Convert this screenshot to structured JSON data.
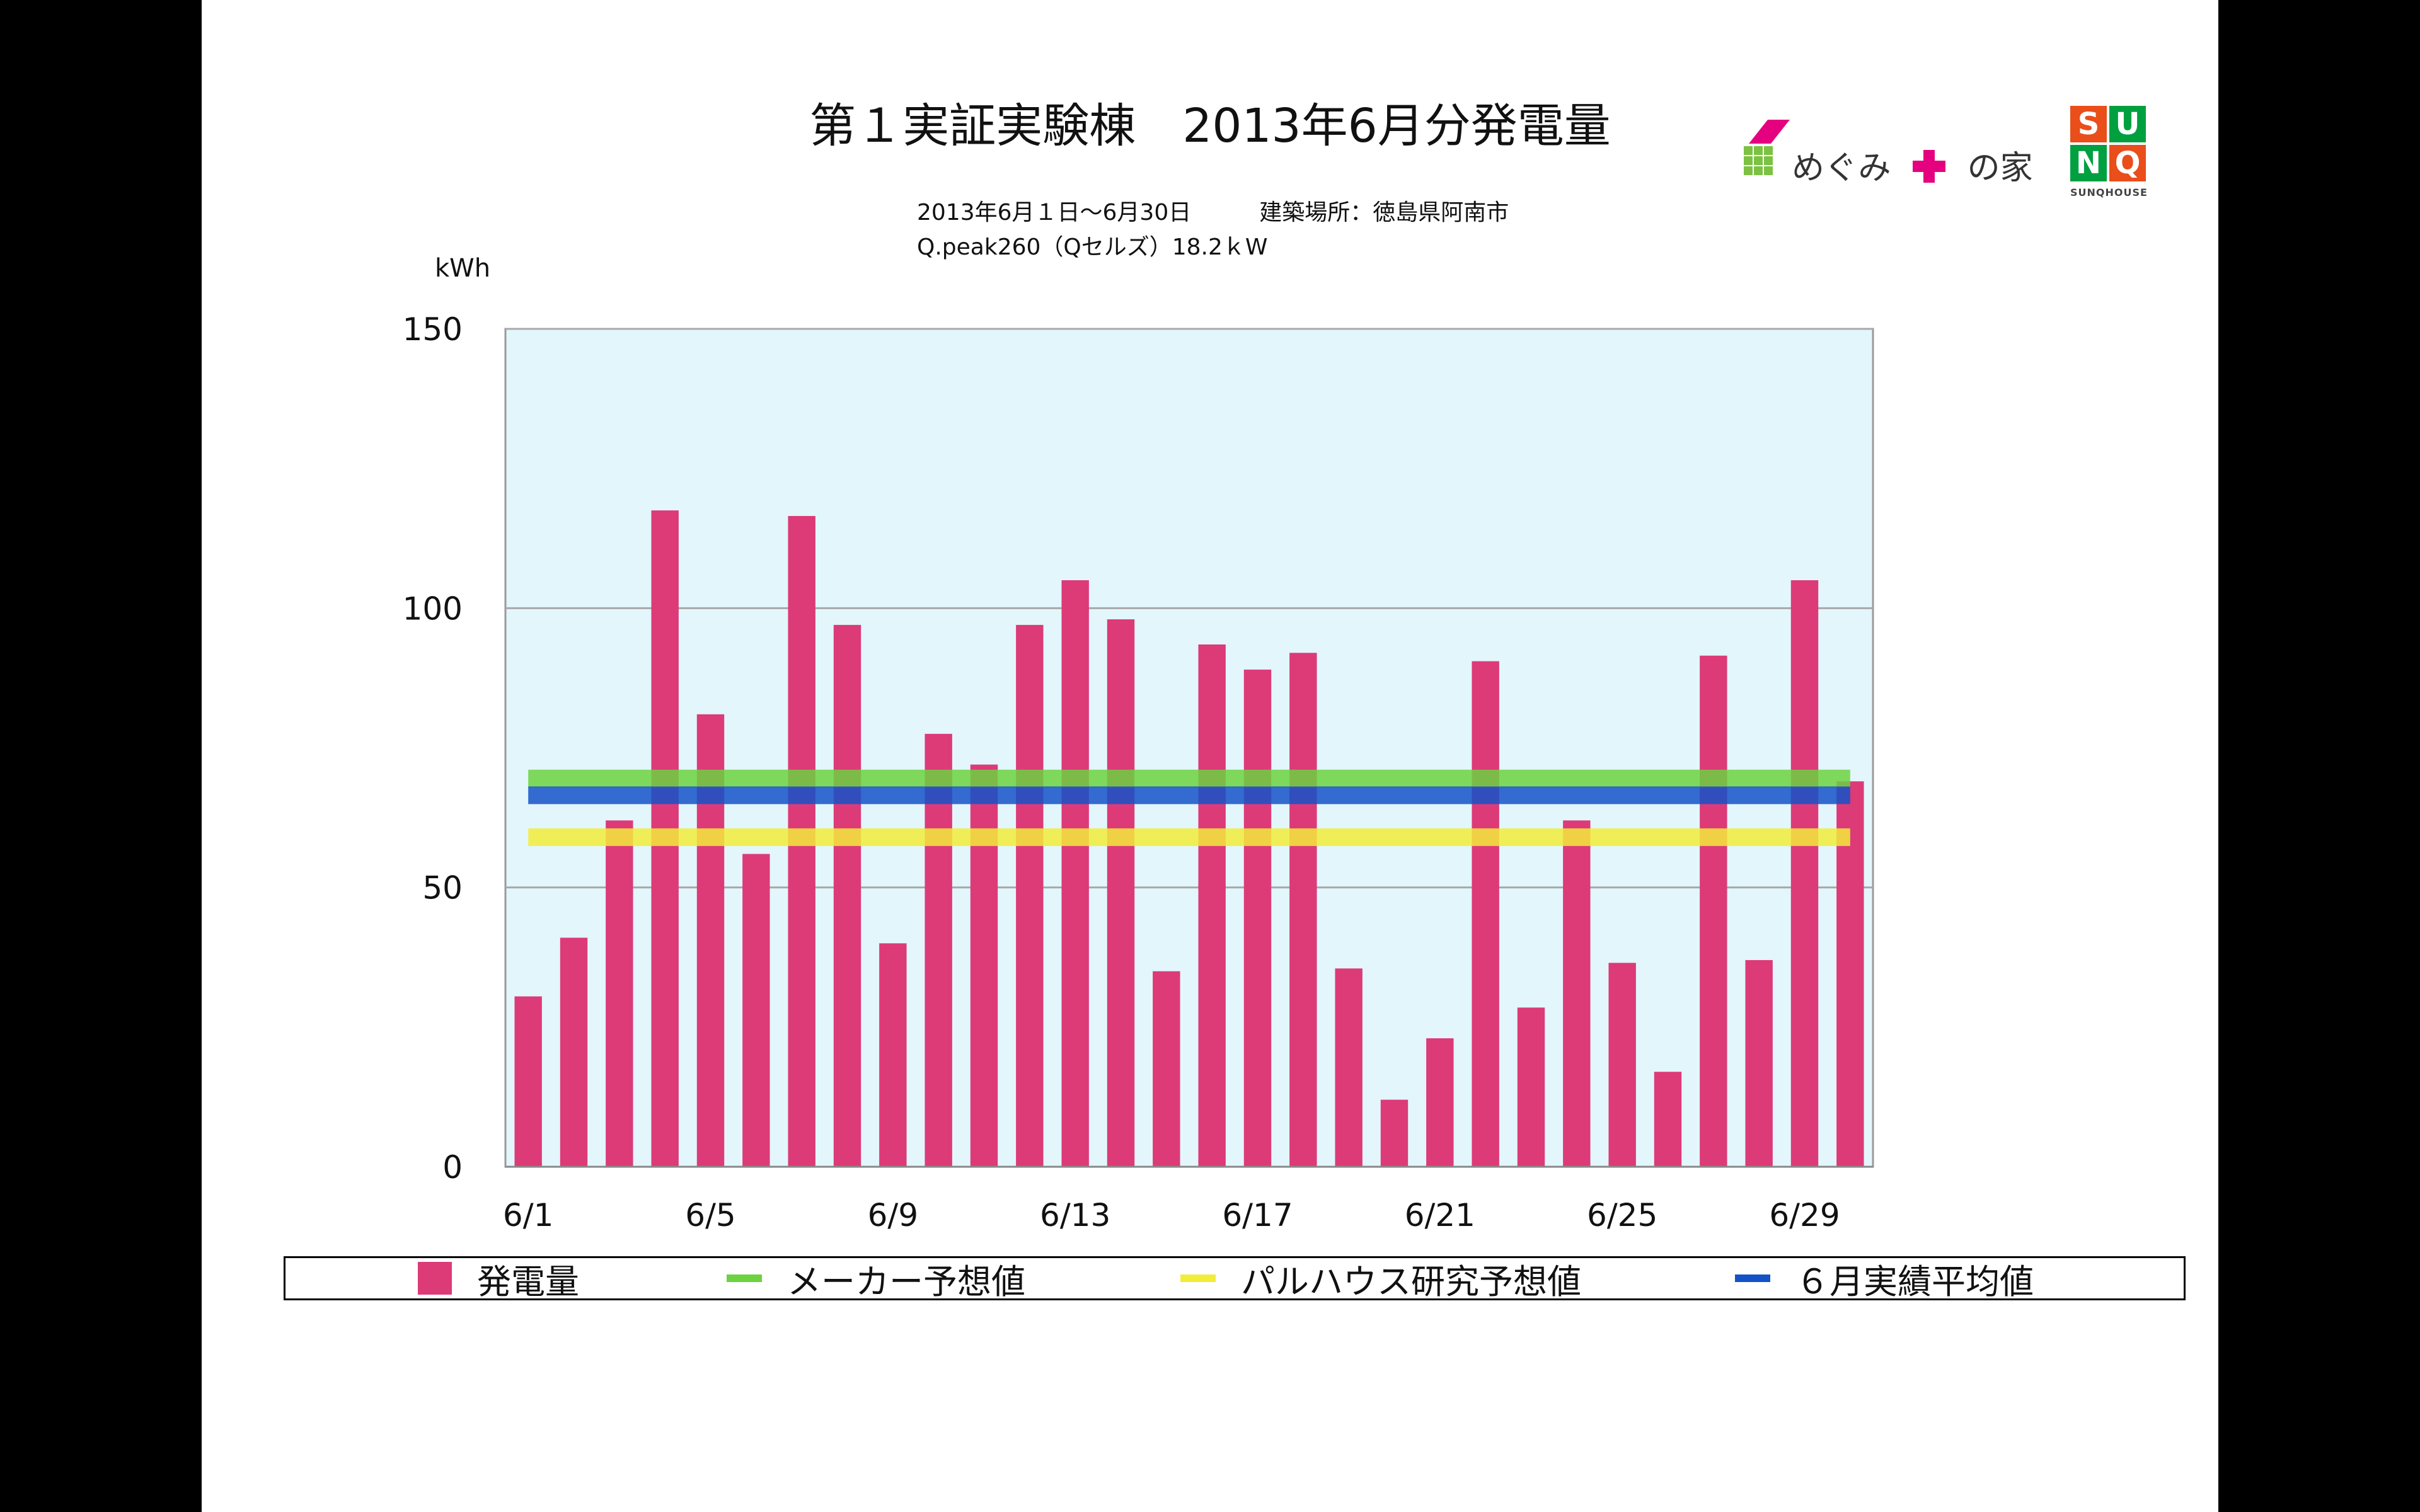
{
  "header": {
    "title": "第１実証実験棟　2013年6月分発電量",
    "period_line": "2013年6月１日〜6月30日　　　建築場所：徳島県阿南市",
    "spec_line": "Q.peak260（Qセルズ）18.2ｋW"
  },
  "logos": {
    "megumi": "めぐみ",
    "megumi_suffix": "の家",
    "sunq_letters": [
      "S",
      "U",
      "N",
      "Q"
    ],
    "sunq_text": "SUNQHOUSE",
    "colors": {
      "green": "#7cc242",
      "magenta": "#e5007f",
      "sunq_green": "#00a040",
      "sunq_red": "#e94e1b"
    }
  },
  "chart_data": {
    "type": "bar",
    "unit_label": "kWh",
    "ylim": [
      0,
      150
    ],
    "yticks": [
      0,
      50,
      100,
      150
    ],
    "grid": true,
    "categories": [
      "6/1",
      "6/2",
      "6/3",
      "6/4",
      "6/5",
      "6/6",
      "6/7",
      "6/8",
      "6/9",
      "6/10",
      "6/11",
      "6/12",
      "6/13",
      "6/14",
      "6/15",
      "6/16",
      "6/17",
      "6/18",
      "6/19",
      "6/20",
      "6/21",
      "6/22",
      "6/23",
      "6/24",
      "6/25",
      "6/26",
      "6/27",
      "6/28",
      "6/29",
      "6/30"
    ],
    "x_tick_labels": [
      "6/1",
      "6/5",
      "6/9",
      "6/13",
      "6/17",
      "6/21",
      "6/25",
      "6/29"
    ],
    "series": [
      {
        "name": "発電量",
        "type": "bar",
        "color": "#dd3a78",
        "values": [
          30.5,
          41,
          62,
          117.5,
          81,
          56,
          116.5,
          97,
          40,
          77.5,
          72,
          97,
          105,
          98,
          35,
          93.5,
          89,
          92,
          35.5,
          12,
          23,
          90.5,
          28.5,
          62,
          36.5,
          17,
          91.5,
          37,
          105,
          69
        ]
      },
      {
        "name": "メーカー予想値",
        "type": "hline",
        "color": "#6cd23f",
        "value": 69.5
      },
      {
        "name": "パルハウス研究予想値",
        "type": "hline",
        "color": "#f2ec3a",
        "value": 59
      },
      {
        "name": "６月実績平均値",
        "type": "hline",
        "color": "#1452c8",
        "value": 66.5
      }
    ],
    "legend_position": "bottom",
    "colors": {
      "plot_bg": "#e2f6fc",
      "grid": "#a8a8a8"
    }
  }
}
